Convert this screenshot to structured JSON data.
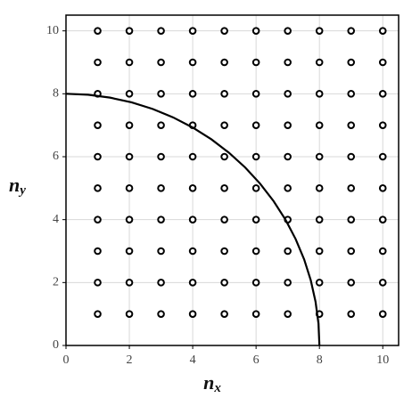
{
  "chart_data": {
    "type": "scatter",
    "xlabel": "n",
    "xlabel_sub": "x",
    "ylabel": "n",
    "ylabel_sub": "y",
    "xlim": [
      0,
      10.5
    ],
    "ylim": [
      0,
      10.5
    ],
    "xticks": [
      0,
      2,
      4,
      6,
      8,
      10
    ],
    "yticks": [
      0,
      2,
      4,
      6,
      8,
      10
    ],
    "grid": true,
    "series": [
      {
        "type": "scatter",
        "color": "#000000",
        "x": [
          1,
          2,
          3,
          4,
          5,
          6,
          7,
          8,
          9,
          10,
          1,
          2,
          3,
          4,
          5,
          6,
          7,
          8,
          9,
          10,
          1,
          2,
          3,
          4,
          5,
          6,
          7,
          8,
          9,
          10,
          1,
          2,
          3,
          4,
          5,
          6,
          7,
          8,
          9,
          10,
          1,
          2,
          3,
          4,
          5,
          6,
          7,
          8,
          9,
          10,
          1,
          2,
          3,
          4,
          5,
          6,
          7,
          8,
          9,
          10,
          1,
          2,
          3,
          4,
          5,
          6,
          7,
          8,
          9,
          10,
          1,
          2,
          3,
          4,
          5,
          6,
          7,
          8,
          9,
          10,
          1,
          2,
          3,
          4,
          5,
          6,
          7,
          8,
          9,
          10,
          1,
          2,
          3,
          4,
          5,
          6,
          7,
          8,
          9,
          10
        ],
        "values": [
          1,
          1,
          1,
          1,
          1,
          1,
          1,
          1,
          1,
          1,
          2,
          2,
          2,
          2,
          2,
          2,
          2,
          2,
          2,
          2,
          3,
          3,
          3,
          3,
          3,
          3,
          3,
          3,
          3,
          3,
          4,
          4,
          4,
          4,
          4,
          4,
          4,
          4,
          4,
          4,
          5,
          5,
          5,
          5,
          5,
          5,
          5,
          5,
          5,
          5,
          6,
          6,
          6,
          6,
          6,
          6,
          6,
          6,
          6,
          6,
          7,
          7,
          7,
          7,
          7,
          7,
          7,
          7,
          7,
          7,
          8,
          8,
          8,
          8,
          8,
          8,
          8,
          8,
          8,
          8,
          9,
          9,
          9,
          9,
          9,
          9,
          9,
          9,
          9,
          9,
          10,
          10,
          10,
          10,
          10,
          10,
          10,
          10,
          10,
          10
        ]
      },
      {
        "type": "line",
        "color": "#000000",
        "x": [
          8,
          7.97,
          7.878,
          7.727,
          7.518,
          7.25,
          6.928,
          6.553,
          6.128,
          5.657,
          5.142,
          4.589,
          4,
          3.381,
          2.736,
          2.071,
          1.389,
          0.697,
          0
        ],
        "values": [
          0,
          0.697,
          1.389,
          2.071,
          2.736,
          3.381,
          4,
          4.589,
          5.142,
          5.657,
          6.128,
          6.553,
          6.928,
          7.25,
          7.518,
          7.727,
          7.878,
          7.97,
          8
        ]
      }
    ]
  }
}
